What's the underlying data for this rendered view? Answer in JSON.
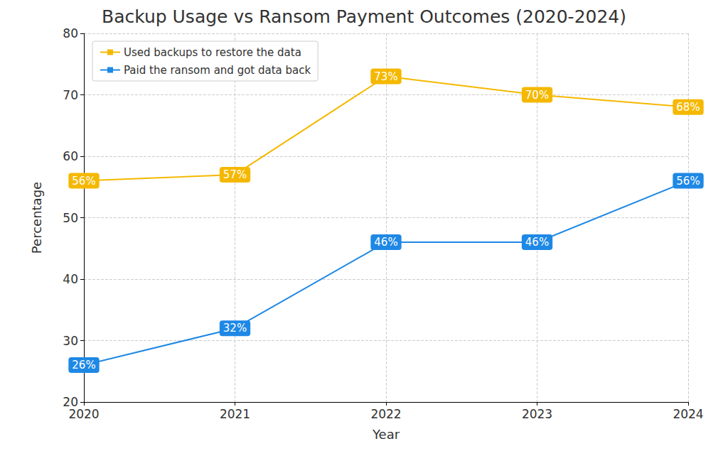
{
  "chart_data": {
    "type": "line",
    "title": "Backup Usage vs Ransom Payment Outcomes (2020-2024)",
    "x_label": "Year",
    "y_label": "Percentage",
    "categories": [
      "2020",
      "2021",
      "2022",
      "2023",
      "2024"
    ],
    "series": [
      {
        "name": "Used backups to restore the data",
        "color": "#f5b800",
        "marker": "square",
        "line_style": "solid",
        "values": [
          56,
          57,
          73,
          70,
          68
        ],
        "value_labels": [
          "56%",
          "57%",
          "73%",
          "70%",
          "68%"
        ]
      },
      {
        "name": "Paid the ransom and got data back",
        "color": "#1e88e5",
        "marker": "square",
        "line_style": "solid",
        "values": [
          26,
          32,
          46,
          46,
          56
        ],
        "value_labels": [
          "26%",
          "32%",
          "46%",
          "46%",
          "56%"
        ]
      }
    ],
    "ylim": [
      20,
      80
    ],
    "yticks": [
      20,
      30,
      40,
      50,
      60,
      70,
      80
    ],
    "grid": true,
    "legend": "upper left",
    "data_labels": true
  }
}
